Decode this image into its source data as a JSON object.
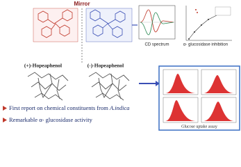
{
  "molecules": {
    "mirror": "Mirror",
    "left_label": "(+)-Hopeaphenol",
    "right_label": "(-)-Hopeaphenol"
  },
  "plots": {
    "cd_spectrum": "CD spectrum",
    "inhibition": "α- glucosidase inhibition",
    "uptake": "Glucose uptake assay"
  },
  "bullets": [
    {
      "text": "First report on chemical constituents from ",
      "emphasis": "A.indica"
    },
    {
      "text": "Remarkable α- glucosidase activity"
    }
  ]
}
